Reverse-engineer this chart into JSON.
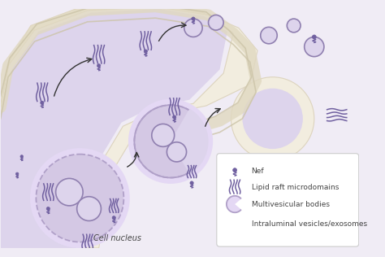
{
  "bg_outer": "#f0ecf5",
  "bg_cell": "#e8e0f0",
  "membrane_color": "#f5f0e8",
  "membrane_edge": "#e8dfc8",
  "mvb_fill": "#d8cce8",
  "mvb_edge": "#b8a8cc",
  "mvb_dashed_fill": "#e0d8ee",
  "nucleus_fill": "#ccc0de",
  "nucleus_edge": "#b0a0cc",
  "nucleolus_fill": "#c0b4d8",
  "intralum_fill": "#ddd4ec",
  "intralum_edge": "#9080b0",
  "nef_color": "#7060a0",
  "lipid_color": "#7060a0",
  "arrow_color": "#333333",
  "text_color": "#444444",
  "legend_bg": "#ffffff",
  "legend_edge": "#cccccc",
  "cell_nucleus_label": "Cell nucleus",
  "legend_items": [
    "Nef",
    "Lipid raft microdomains",
    "Multivesicular bodies",
    "Intraluminal vesicles/exosomes"
  ],
  "figsize": [
    4.74,
    3.16
  ],
  "dpi": 100
}
